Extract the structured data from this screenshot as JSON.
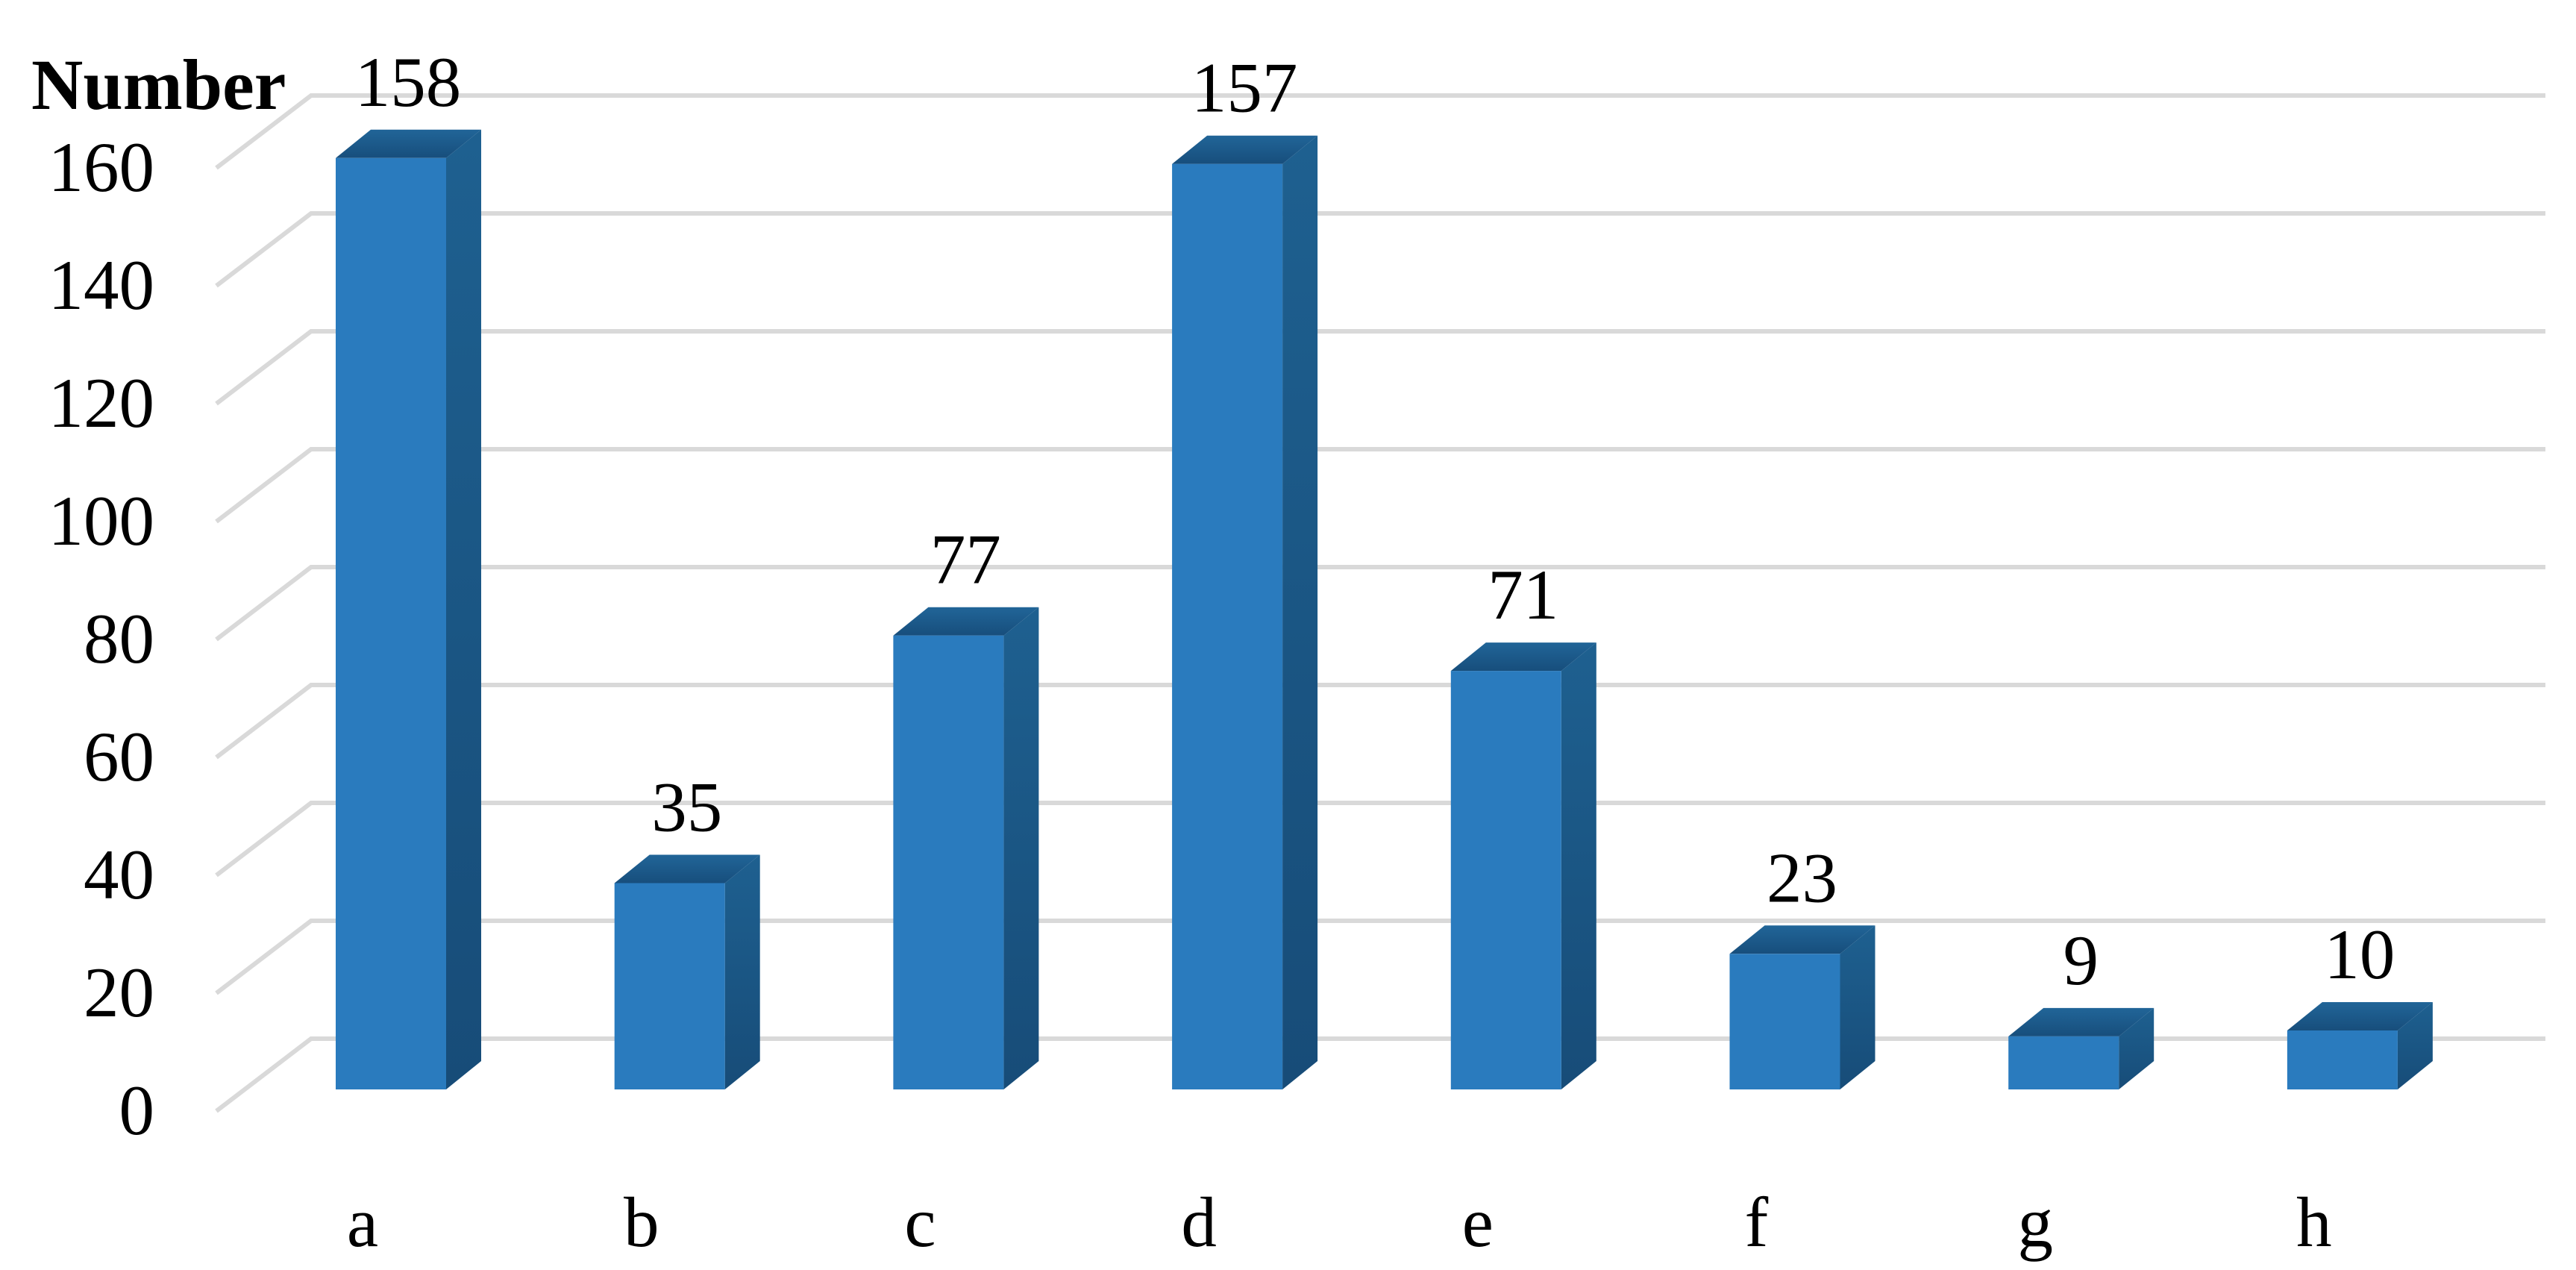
{
  "chart_data": {
    "type": "bar",
    "variant": "3d-clustered-column",
    "title": "Number",
    "categories": [
      "a",
      "b",
      "c",
      "d",
      "e",
      "f",
      "g",
      "h"
    ],
    "values": [
      158,
      35,
      77,
      157,
      71,
      23,
      9,
      10
    ],
    "data_labels": [
      "158",
      "35",
      "77",
      "157",
      "71",
      "23",
      "9",
      "10"
    ],
    "xlabel": "",
    "ylabel": "Number",
    "ylim": [
      0,
      160
    ],
    "ytick_interval": 20,
    "yticks": [
      0,
      20,
      40,
      60,
      80,
      100,
      120,
      140,
      160
    ],
    "grid": true,
    "legend": false,
    "colors": {
      "bar_front": "#2A7BBE",
      "bar_top_near": "#174E7C",
      "bar_top_far": "#216598",
      "bar_side_top": "#1E6090",
      "bar_side_bottom": "#174C78",
      "gridline": "#D9D9D9",
      "text": "#000000",
      "background": "#FFFFFF"
    }
  }
}
